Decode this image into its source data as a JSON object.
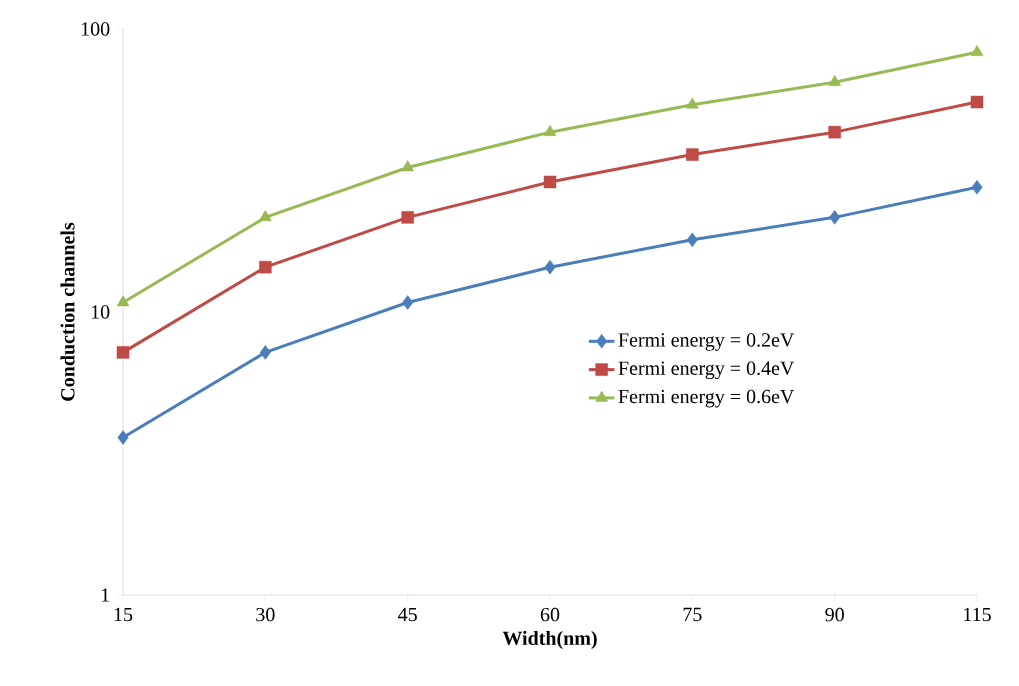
{
  "chart_data": {
    "type": "line",
    "xlabel": "Width(nm)",
    "ylabel": "Conduction channels",
    "categories": [
      "15",
      "30",
      "45",
      "60",
      "75",
      "90",
      "115"
    ],
    "series": [
      {
        "name": "Fermi energy = 0.2eV",
        "color": "#4a7ebb",
        "marker": "diamond",
        "values": [
          3.6,
          7.2,
          10.8,
          14.4,
          18,
          21.6,
          27.6
        ]
      },
      {
        "name": "Fermi energy = 0.4eV",
        "color": "#be4b48",
        "marker": "square",
        "values": [
          7.2,
          14.4,
          21.6,
          28.8,
          36,
          43.2,
          55.2
        ]
      },
      {
        "name": "Fermi energy = 0.6eV",
        "color": "#98b954",
        "marker": "triangle",
        "values": [
          10.8,
          21.6,
          32.4,
          43.2,
          54,
          64.8,
          82.8
        ]
      }
    ],
    "log": "y",
    "ylim": [
      1,
      100
    ],
    "yticks": [
      1,
      10,
      100
    ],
    "grid": false,
    "legend": "right",
    "line_style": "solid"
  }
}
